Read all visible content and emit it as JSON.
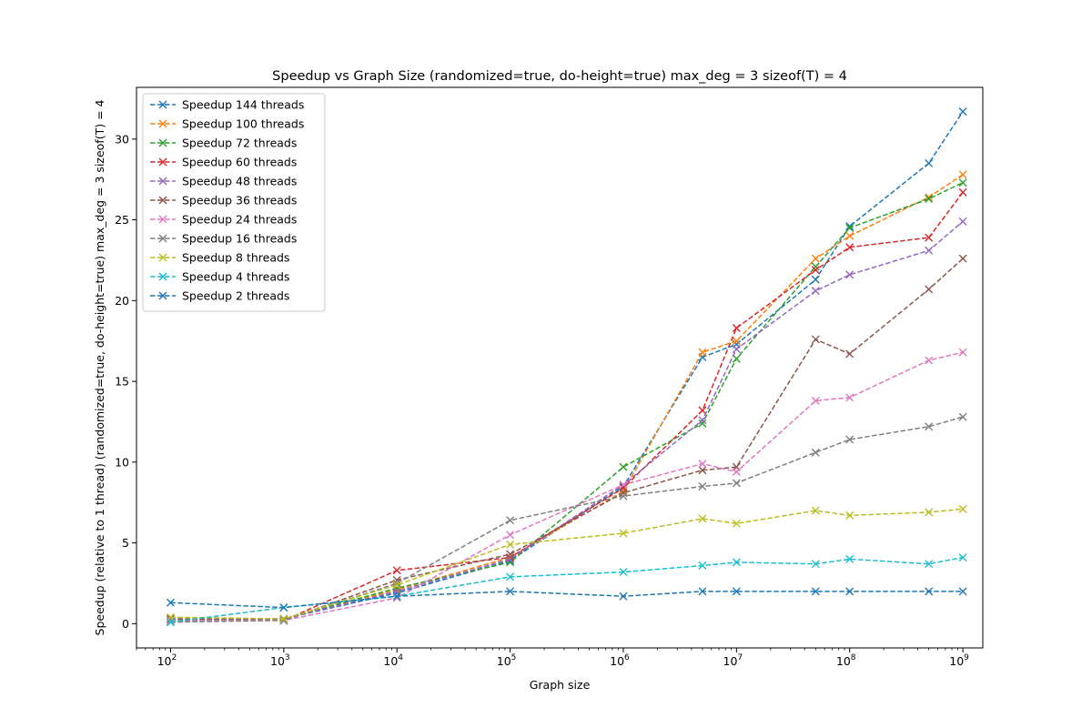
{
  "chart_data": {
    "type": "line",
    "title": "Speedup vs Graph Size (randomized=true, do-height=true) max_deg = 3 sizeof(T) = 4",
    "xlabel": "Graph size",
    "ylabel": "Speedup (relative to 1 thread) (randomized=true, do-height=true) max_deg = 3 sizeof(T) = 4",
    "xscale": "log",
    "xlim": [
      50,
      1500000000
    ],
    "ylim": [
      -1.5,
      33.2
    ],
    "x_ticks": [
      {
        "value": 100,
        "exp": "2"
      },
      {
        "value": 1000,
        "exp": "3"
      },
      {
        "value": 10000,
        "exp": "4"
      },
      {
        "value": 100000,
        "exp": "5"
      },
      {
        "value": 1000000,
        "exp": "6"
      },
      {
        "value": 10000000,
        "exp": "7"
      },
      {
        "value": 100000000,
        "exp": "8"
      },
      {
        "value": 1000000000,
        "exp": "9"
      }
    ],
    "x_tick_base": "10",
    "y_ticks": [
      0,
      5,
      10,
      15,
      20,
      25,
      30
    ],
    "legend_position": "top-left",
    "x": [
      100,
      1000,
      10000,
      100000,
      1000000,
      5000000,
      10000000,
      50000000,
      100000000,
      500000000,
      1000000000
    ],
    "series": [
      {
        "name": "Speedup 144 threads",
        "color": "#1f77b4",
        "values": [
          0.1,
          0.3,
          1.9,
          3.9,
          8.5,
          16.5,
          17.3,
          21.3,
          24.6,
          28.5,
          31.7
        ]
      },
      {
        "name": "Speedup 100 threads",
        "color": "#ff7f0e",
        "values": [
          0.2,
          0.3,
          2.1,
          4.1,
          8.2,
          16.8,
          17.5,
          22.6,
          24.0,
          26.4,
          27.8
        ]
      },
      {
        "name": "Speedup 72 threads",
        "color": "#2ca02c",
        "values": [
          0.3,
          0.3,
          2.2,
          3.8,
          9.7,
          12.4,
          16.4,
          22.1,
          24.5,
          26.3,
          27.3
        ]
      },
      {
        "name": "Speedup 60 threads",
        "color": "#d62728",
        "values": [
          0.2,
          0.2,
          3.3,
          4.1,
          8.4,
          13.2,
          18.3,
          21.9,
          23.3,
          23.9,
          26.7
        ]
      },
      {
        "name": "Speedup 48 threads",
        "color": "#9467bd",
        "values": [
          0.2,
          0.3,
          2.0,
          4.0,
          8.6,
          12.6,
          17.0,
          20.6,
          21.6,
          23.1,
          24.9
        ]
      },
      {
        "name": "Speedup 36 threads",
        "color": "#8c564b",
        "values": [
          0.3,
          0.2,
          2.7,
          4.3,
          8.1,
          9.5,
          9.7,
          17.6,
          16.7,
          20.7,
          22.6
        ]
      },
      {
        "name": "Speedup 24 threads",
        "color": "#e377c2",
        "values": [
          0.2,
          0.2,
          1.6,
          5.5,
          8.6,
          9.9,
          9.4,
          13.8,
          14.0,
          16.3,
          16.8
        ]
      },
      {
        "name": "Speedup 16 threads",
        "color": "#7f7f7f",
        "values": [
          0.1,
          0.2,
          2.5,
          6.4,
          7.9,
          8.5,
          8.7,
          10.6,
          11.4,
          12.2,
          12.8
        ]
      },
      {
        "name": "Speedup 8 threads",
        "color": "#bcbd22",
        "values": [
          0.4,
          0.3,
          2.4,
          4.9,
          5.6,
          6.5,
          6.2,
          7.0,
          6.7,
          6.9,
          7.1
        ]
      },
      {
        "name": "Speedup 4 threads",
        "color": "#17becf",
        "values": [
          0.1,
          1.0,
          1.7,
          2.9,
          3.2,
          3.6,
          3.8,
          3.7,
          4.0,
          3.7,
          4.1
        ]
      },
      {
        "name": "Speedup 2 threads",
        "color": "#1f77b4",
        "values": [
          1.3,
          1.0,
          1.7,
          2.0,
          1.7,
          2.0,
          2.0,
          2.0,
          2.0,
          2.0,
          2.0
        ]
      }
    ]
  }
}
